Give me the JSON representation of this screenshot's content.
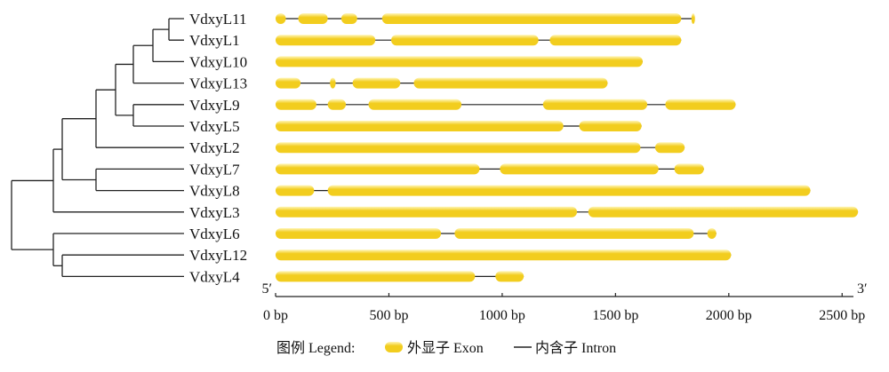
{
  "chart_data": {
    "type": "gene_structure",
    "genes": [
      {
        "name": "VdxyL11",
        "length": 1845,
        "exons": [
          [
            0,
            45
          ],
          [
            100,
            230
          ],
          [
            290,
            360
          ],
          [
            470,
            1790
          ],
          [
            1835,
            1845
          ]
        ]
      },
      {
        "name": "VdxyL1",
        "length": 1790,
        "exons": [
          [
            0,
            440
          ],
          [
            510,
            1160
          ],
          [
            1210,
            1790
          ]
        ]
      },
      {
        "name": "VdxyL10",
        "length": 1620,
        "exons": [
          [
            0,
            1620
          ]
        ]
      },
      {
        "name": "VdxyL13",
        "length": 1465,
        "exons": [
          [
            0,
            110
          ],
          [
            240,
            265
          ],
          [
            340,
            550
          ],
          [
            610,
            1465
          ]
        ]
      },
      {
        "name": "VdxyL9",
        "length": 2030,
        "exons": [
          [
            0,
            180
          ],
          [
            230,
            310
          ],
          [
            410,
            820
          ],
          [
            1180,
            1640
          ],
          [
            1720,
            2030
          ]
        ]
      },
      {
        "name": "VdxyL5",
        "length": 1615,
        "exons": [
          [
            0,
            1270
          ],
          [
            1340,
            1615
          ]
        ]
      },
      {
        "name": "VdxyL2",
        "length": 1805,
        "exons": [
          [
            0,
            1610
          ],
          [
            1675,
            1805
          ]
        ]
      },
      {
        "name": "VdxyL7",
        "length": 1890,
        "exons": [
          [
            0,
            900
          ],
          [
            990,
            1690
          ],
          [
            1760,
            1890
          ]
        ]
      },
      {
        "name": "VdxyL8",
        "length": 2360,
        "exons": [
          [
            0,
            170
          ],
          [
            230,
            2360
          ]
        ]
      },
      {
        "name": "VdxyL3",
        "length": 2570,
        "exons": [
          [
            0,
            1330
          ],
          [
            1380,
            2570
          ]
        ]
      },
      {
        "name": "VdxyL6",
        "length": 1945,
        "exons": [
          [
            0,
            730
          ],
          [
            790,
            1845
          ],
          [
            1905,
            1945
          ]
        ]
      },
      {
        "name": "VdxyL12",
        "length": 2010,
        "exons": [
          [
            0,
            2010
          ]
        ]
      },
      {
        "name": "VdxyL4",
        "length": 1095,
        "exons": [
          [
            0,
            880
          ],
          [
            970,
            1095
          ]
        ]
      }
    ],
    "xlim": [
      0,
      2550
    ],
    "ticks": [
      0,
      500,
      1000,
      1500,
      2000,
      2500
    ],
    "tick_labels": [
      "0 bp",
      "500 bp",
      "1000 bp",
      "1500 bp",
      "2000 bp",
      "2500 bp"
    ],
    "end_labels": {
      "left": "5′",
      "right": "3′"
    },
    "exon_color": "#F2CD1E",
    "exon_highlight": "#FFF6B8",
    "intron_color": "#222222",
    "tree": {
      "name": "root",
      "children": [
        {
          "name": "c1",
          "children": [
            {
              "name": "c2",
              "children": [
                {
                  "name": "c3",
                  "children": [
                    {
                      "name": "c4",
                      "children": [
                        {
                          "name": "c5",
                          "children": [
                            {
                              "name": "c6",
                              "children": [
                                {
                                  "leaf": "VdxyL11"
                                },
                                {
                                  "leaf": "VdxyL1"
                                }
                              ]
                            },
                            {
                              "leaf": "VdxyL10"
                            }
                          ]
                        },
                        {
                          "leaf": "VdxyL13"
                        }
                      ]
                    },
                    {
                      "name": "c7",
                      "children": [
                        {
                          "leaf": "VdxyL9"
                        },
                        {
                          "leaf": "VdxyL5"
                        }
                      ]
                    }
                  ]
                },
                {
                  "leaf": "VdxyL2"
                }
              ]
            },
            {
              "name": "c8",
              "children": [
                {
                  "leaf": "VdxyL7"
                },
                {
                  "leaf": "VdxyL8"
                }
              ]
            }
          ]
        },
        {
          "leaf": "VdxyL3"
        }
      ]
    },
    "tree2": {
      "name": "root2",
      "children": [
        {
          "leaf": "VdxyL6"
        },
        {
          "name": "c9",
          "children": [
            {
              "leaf": "VdxyL12"
            },
            {
              "leaf": "VdxyL4"
            }
          ]
        }
      ]
    }
  },
  "legend": {
    "title": "图例 Legend:",
    "exon_label": "外显子 Exon",
    "intron_label": "内含子 Intron"
  }
}
